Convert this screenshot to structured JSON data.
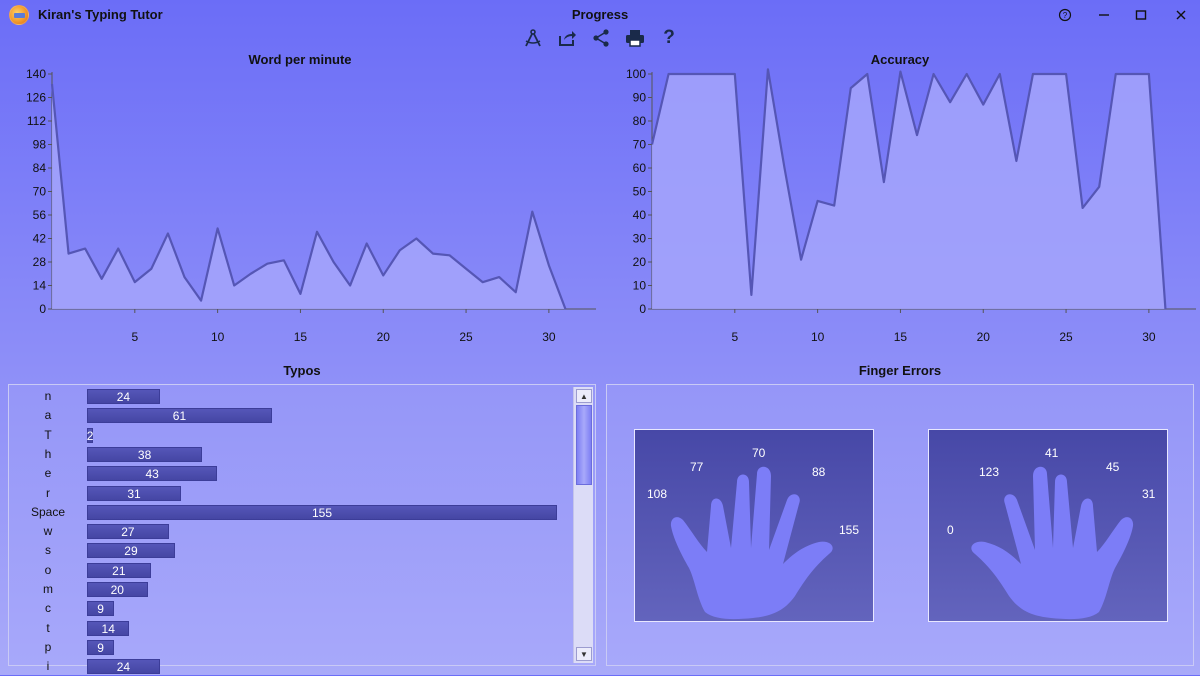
{
  "titlebar": {
    "app_title": "Kiran's Typing Tutor",
    "window_title": "Progress",
    "help_icon": "help-circle-icon",
    "minimize_icon": "minimize-icon",
    "maximize_icon": "maximize-icon",
    "close_icon": "close-icon"
  },
  "toolbar": {
    "items": [
      "compass-icon",
      "export-icon",
      "share-icon",
      "print-icon",
      "help-icon"
    ],
    "help_label": "?"
  },
  "charts": {
    "wpm": {
      "title": "Word per minute",
      "yticks": [
        "140",
        "126",
        "112",
        "98",
        "84",
        "70",
        "56",
        "42",
        "28",
        "14",
        "0"
      ],
      "xticks": [
        "5",
        "10",
        "15",
        "20",
        "25",
        "30"
      ]
    },
    "accuracy": {
      "title": "Accuracy",
      "yticks": [
        "100",
        "90",
        "80",
        "70",
        "60",
        "50",
        "40",
        "30",
        "20",
        "10",
        "0"
      ],
      "xticks": [
        "5",
        "10",
        "15",
        "20",
        "25",
        "30"
      ]
    }
  },
  "chart_data": [
    {
      "type": "area",
      "title": "Word per minute",
      "x": [
        0,
        1,
        2,
        3,
        4,
        5,
        6,
        7,
        8,
        9,
        10,
        11,
        12,
        13,
        14,
        15,
        16,
        17,
        18,
        19,
        20,
        21,
        22,
        23,
        24,
        25,
        26,
        27,
        28,
        29,
        30,
        31
      ],
      "values": [
        134,
        33,
        36,
        18,
        36,
        16,
        24,
        45,
        19,
        5,
        48,
        14,
        21,
        27,
        29,
        9,
        46,
        28,
        14,
        39,
        20,
        35,
        42,
        33,
        32,
        24,
        16,
        19,
        10,
        58,
        26,
        0
      ],
      "ylim": [
        0,
        140
      ],
      "xlim": [
        0,
        32
      ],
      "colors": {
        "fill": "#a4a5fb",
        "line": "#5556b5"
      }
    },
    {
      "type": "area",
      "title": "Accuracy",
      "x": [
        0,
        1,
        2,
        3,
        4,
        5,
        6,
        7,
        8,
        9,
        10,
        11,
        12,
        13,
        14,
        15,
        16,
        17,
        18,
        19,
        20,
        21,
        22,
        23,
        24,
        25,
        26,
        27,
        28,
        29,
        30,
        31
      ],
      "values": [
        70,
        100,
        100,
        100,
        100,
        100,
        6,
        102,
        60,
        21,
        46,
        44,
        94,
        100,
        54,
        101,
        74,
        100,
        88,
        100,
        87,
        100,
        63,
        100,
        100,
        100,
        43,
        52,
        100,
        100,
        100,
        0
      ],
      "ylim": [
        0,
        100
      ],
      "xlim": [
        0,
        32
      ],
      "colors": {
        "fill": "#a4a5fb",
        "line": "#5556b5"
      }
    }
  ],
  "typos": {
    "title": "Typos",
    "max": 155,
    "items": [
      {
        "key": "n",
        "count": 24
      },
      {
        "key": "a",
        "count": 61
      },
      {
        "key": "T",
        "count": 2
      },
      {
        "key": "h",
        "count": 38
      },
      {
        "key": "e",
        "count": 43
      },
      {
        "key": "r",
        "count": 31
      },
      {
        "key": "Space",
        "count": 155
      },
      {
        "key": "w",
        "count": 27
      },
      {
        "key": "s",
        "count": 29
      },
      {
        "key": "o",
        "count": 21
      },
      {
        "key": "m",
        "count": 20
      },
      {
        "key": "c",
        "count": 9
      },
      {
        "key": "t",
        "count": 14
      },
      {
        "key": "p",
        "count": 9
      },
      {
        "key": "i",
        "count": 24
      }
    ]
  },
  "finger_errors": {
    "title": "Finger Errors",
    "left_hand": {
      "thumb": "155",
      "index": "88",
      "middle": "70",
      "ring": "77",
      "pinky": "108"
    },
    "right_hand": {
      "thumb": "0",
      "index": "123",
      "middle": "41",
      "ring": "45",
      "pinky": "31"
    }
  }
}
